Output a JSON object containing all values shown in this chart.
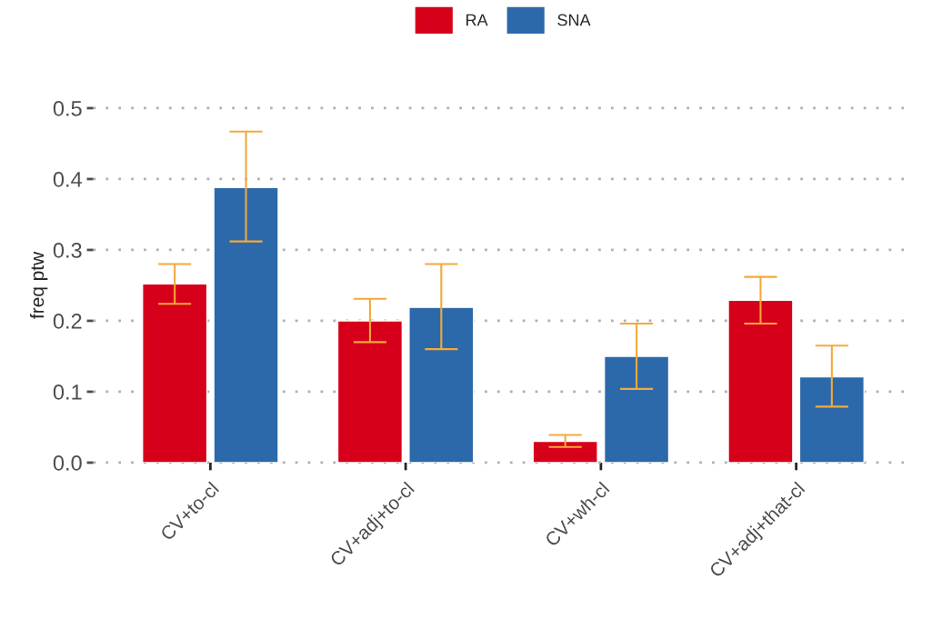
{
  "chart_data": {
    "type": "bar",
    "ylabel": "freq ptw",
    "categories": [
      "CV+to-cl",
      "CV+adj+to-cl",
      "CV+wh-cl",
      "CV+adj+that-cl"
    ],
    "series": [
      {
        "name": "RA",
        "color": "#d7001a",
        "values": [
          0.252,
          0.2,
          0.03,
          0.229
        ],
        "errors": [
          [
            0.224,
            0.28
          ],
          [
            0.17,
            0.231
          ],
          [
            0.022,
            0.039
          ],
          [
            0.196,
            0.262
          ]
        ]
      },
      {
        "name": "SNA",
        "color": "#2c69aa",
        "values": [
          0.388,
          0.219,
          0.15,
          0.121
        ],
        "errors": [
          [
            0.312,
            0.467
          ],
          [
            0.16,
            0.28
          ],
          [
            0.104,
            0.196
          ],
          [
            0.079,
            0.165
          ]
        ]
      }
    ],
    "ylim": [
      0,
      0.5
    ],
    "yticks": [
      {
        "value": 0,
        "label": "0.0"
      },
      0.1,
      0.2,
      0.3,
      0.4,
      0.5
    ],
    "grid": "y",
    "legend": "top"
  }
}
